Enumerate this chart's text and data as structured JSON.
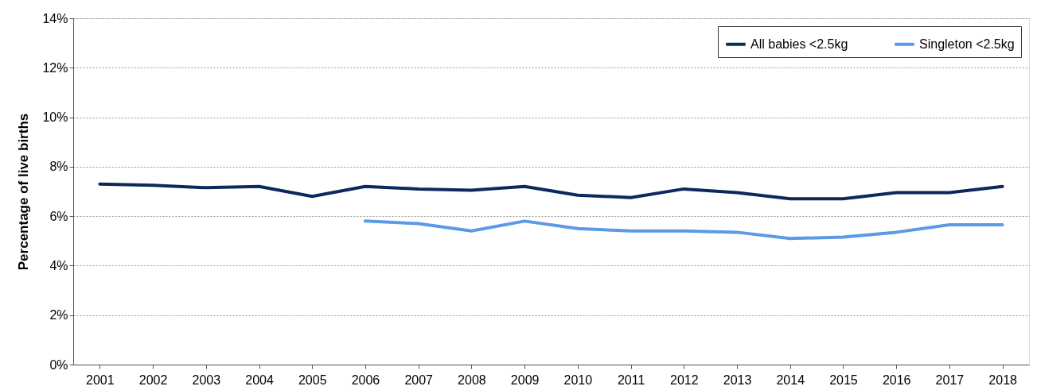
{
  "chart_data": {
    "type": "line",
    "ylabel": "Percentage of live births",
    "categories": [
      "2001",
      "2002",
      "2003",
      "2004",
      "2005",
      "2006",
      "2007",
      "2008",
      "2009",
      "2010",
      "2011",
      "2012",
      "2013",
      "2014",
      "2015",
      "2016",
      "2017",
      "2018"
    ],
    "series": [
      {
        "name": "All babies <2.5kg",
        "color": "#0b2a5b",
        "values": [
          7.3,
          7.25,
          7.15,
          7.2,
          6.8,
          7.2,
          7.1,
          7.05,
          7.2,
          6.85,
          6.75,
          7.1,
          6.95,
          6.7,
          6.7,
          6.95,
          6.95,
          7.2
        ]
      },
      {
        "name": "Singleton <2.5kg",
        "color": "#5b9ae6",
        "values": [
          null,
          null,
          null,
          null,
          null,
          5.8,
          5.7,
          5.4,
          5.8,
          5.5,
          5.4,
          5.4,
          5.35,
          5.1,
          5.15,
          5.35,
          5.65,
          5.65
        ]
      }
    ],
    "ylim": [
      0,
      14
    ],
    "yticks": [
      {
        "value": 0,
        "label": "0%"
      },
      {
        "value": 2,
        "label": "2%"
      },
      {
        "value": 4,
        "label": "4%"
      },
      {
        "value": 6,
        "label": "6%"
      },
      {
        "value": 8,
        "label": "8%"
      },
      {
        "value": 10,
        "label": "10%"
      },
      {
        "value": 12,
        "label": "12%"
      },
      {
        "value": 14,
        "label": "14%"
      }
    ],
    "grid": "y",
    "legend": "top right",
    "line_style": "solid",
    "marker": "none"
  }
}
